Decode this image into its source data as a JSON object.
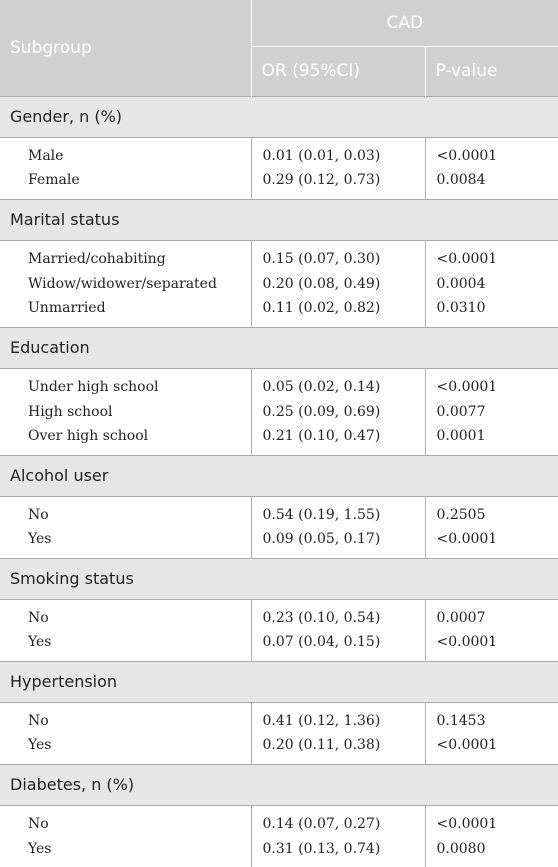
{
  "header": {
    "subgroup": "Subgroup",
    "cad": "CAD",
    "or_col": "OR (95%CI)",
    "p_col": "P-value"
  },
  "groups": [
    {
      "title": "Gender, n (%)",
      "rows": [
        {
          "label": "Male",
          "or": "0.01 (0.01, 0.03)",
          "p": "<0.0001"
        },
        {
          "label": "Female",
          "or": "0.29 (0.12, 0.73)",
          "p": "0.0084"
        }
      ]
    },
    {
      "title": "Marital status",
      "rows": [
        {
          "label": "Married/cohabiting",
          "or": "0.15 (0.07, 0.30)",
          "p": "<0.0001"
        },
        {
          "label": "Widow/widower/separated",
          "or": "0.20 (0.08, 0.49)",
          "p": "0.0004"
        },
        {
          "label": "Unmarried",
          "or": "0.11 (0.02, 0.82)",
          "p": "0.0310"
        }
      ]
    },
    {
      "title": "Education",
      "rows": [
        {
          "label": "Under high school",
          "or": "0.05 (0.02, 0.14)",
          "p": "<0.0001"
        },
        {
          "label": "High school",
          "or": "0.25 (0.09, 0.69)",
          "p": "0.0077"
        },
        {
          "label": "Over high school",
          "or": "0.21 (0.10, 0.47)",
          "p": "0.0001"
        }
      ]
    },
    {
      "title": "Alcohol user",
      "rows": [
        {
          "label": "No",
          "or": "0.54 (0.19, 1.55)",
          "p": "0.2505"
        },
        {
          "label": "Yes",
          "or": "0.09 (0.05, 0.17)",
          "p": "<0.0001"
        }
      ]
    },
    {
      "title": "Smoking status",
      "rows": [
        {
          "label": "No",
          "or": "0.23 (0.10, 0.54)",
          "p": "0.0007"
        },
        {
          "label": "Yes",
          "or": "0.07 (0.04, 0.15)",
          "p": "<0.0001"
        }
      ]
    },
    {
      "title": "Hypertension",
      "rows": [
        {
          "label": "No",
          "or": "0.41 (0.12, 1.36)",
          "p": "0.1453"
        },
        {
          "label": "Yes",
          "or": "0.20 (0.11, 0.38)",
          "p": "<0.0001"
        }
      ]
    },
    {
      "title": "Diabetes, n (%)",
      "rows": [
        {
          "label": "No",
          "or": "0.14 (0.07, 0.27)",
          "p": "<0.0001"
        },
        {
          "label": "Yes",
          "or": "0.31 (0.13, 0.74)",
          "p": "0.0080"
        }
      ]
    }
  ]
}
